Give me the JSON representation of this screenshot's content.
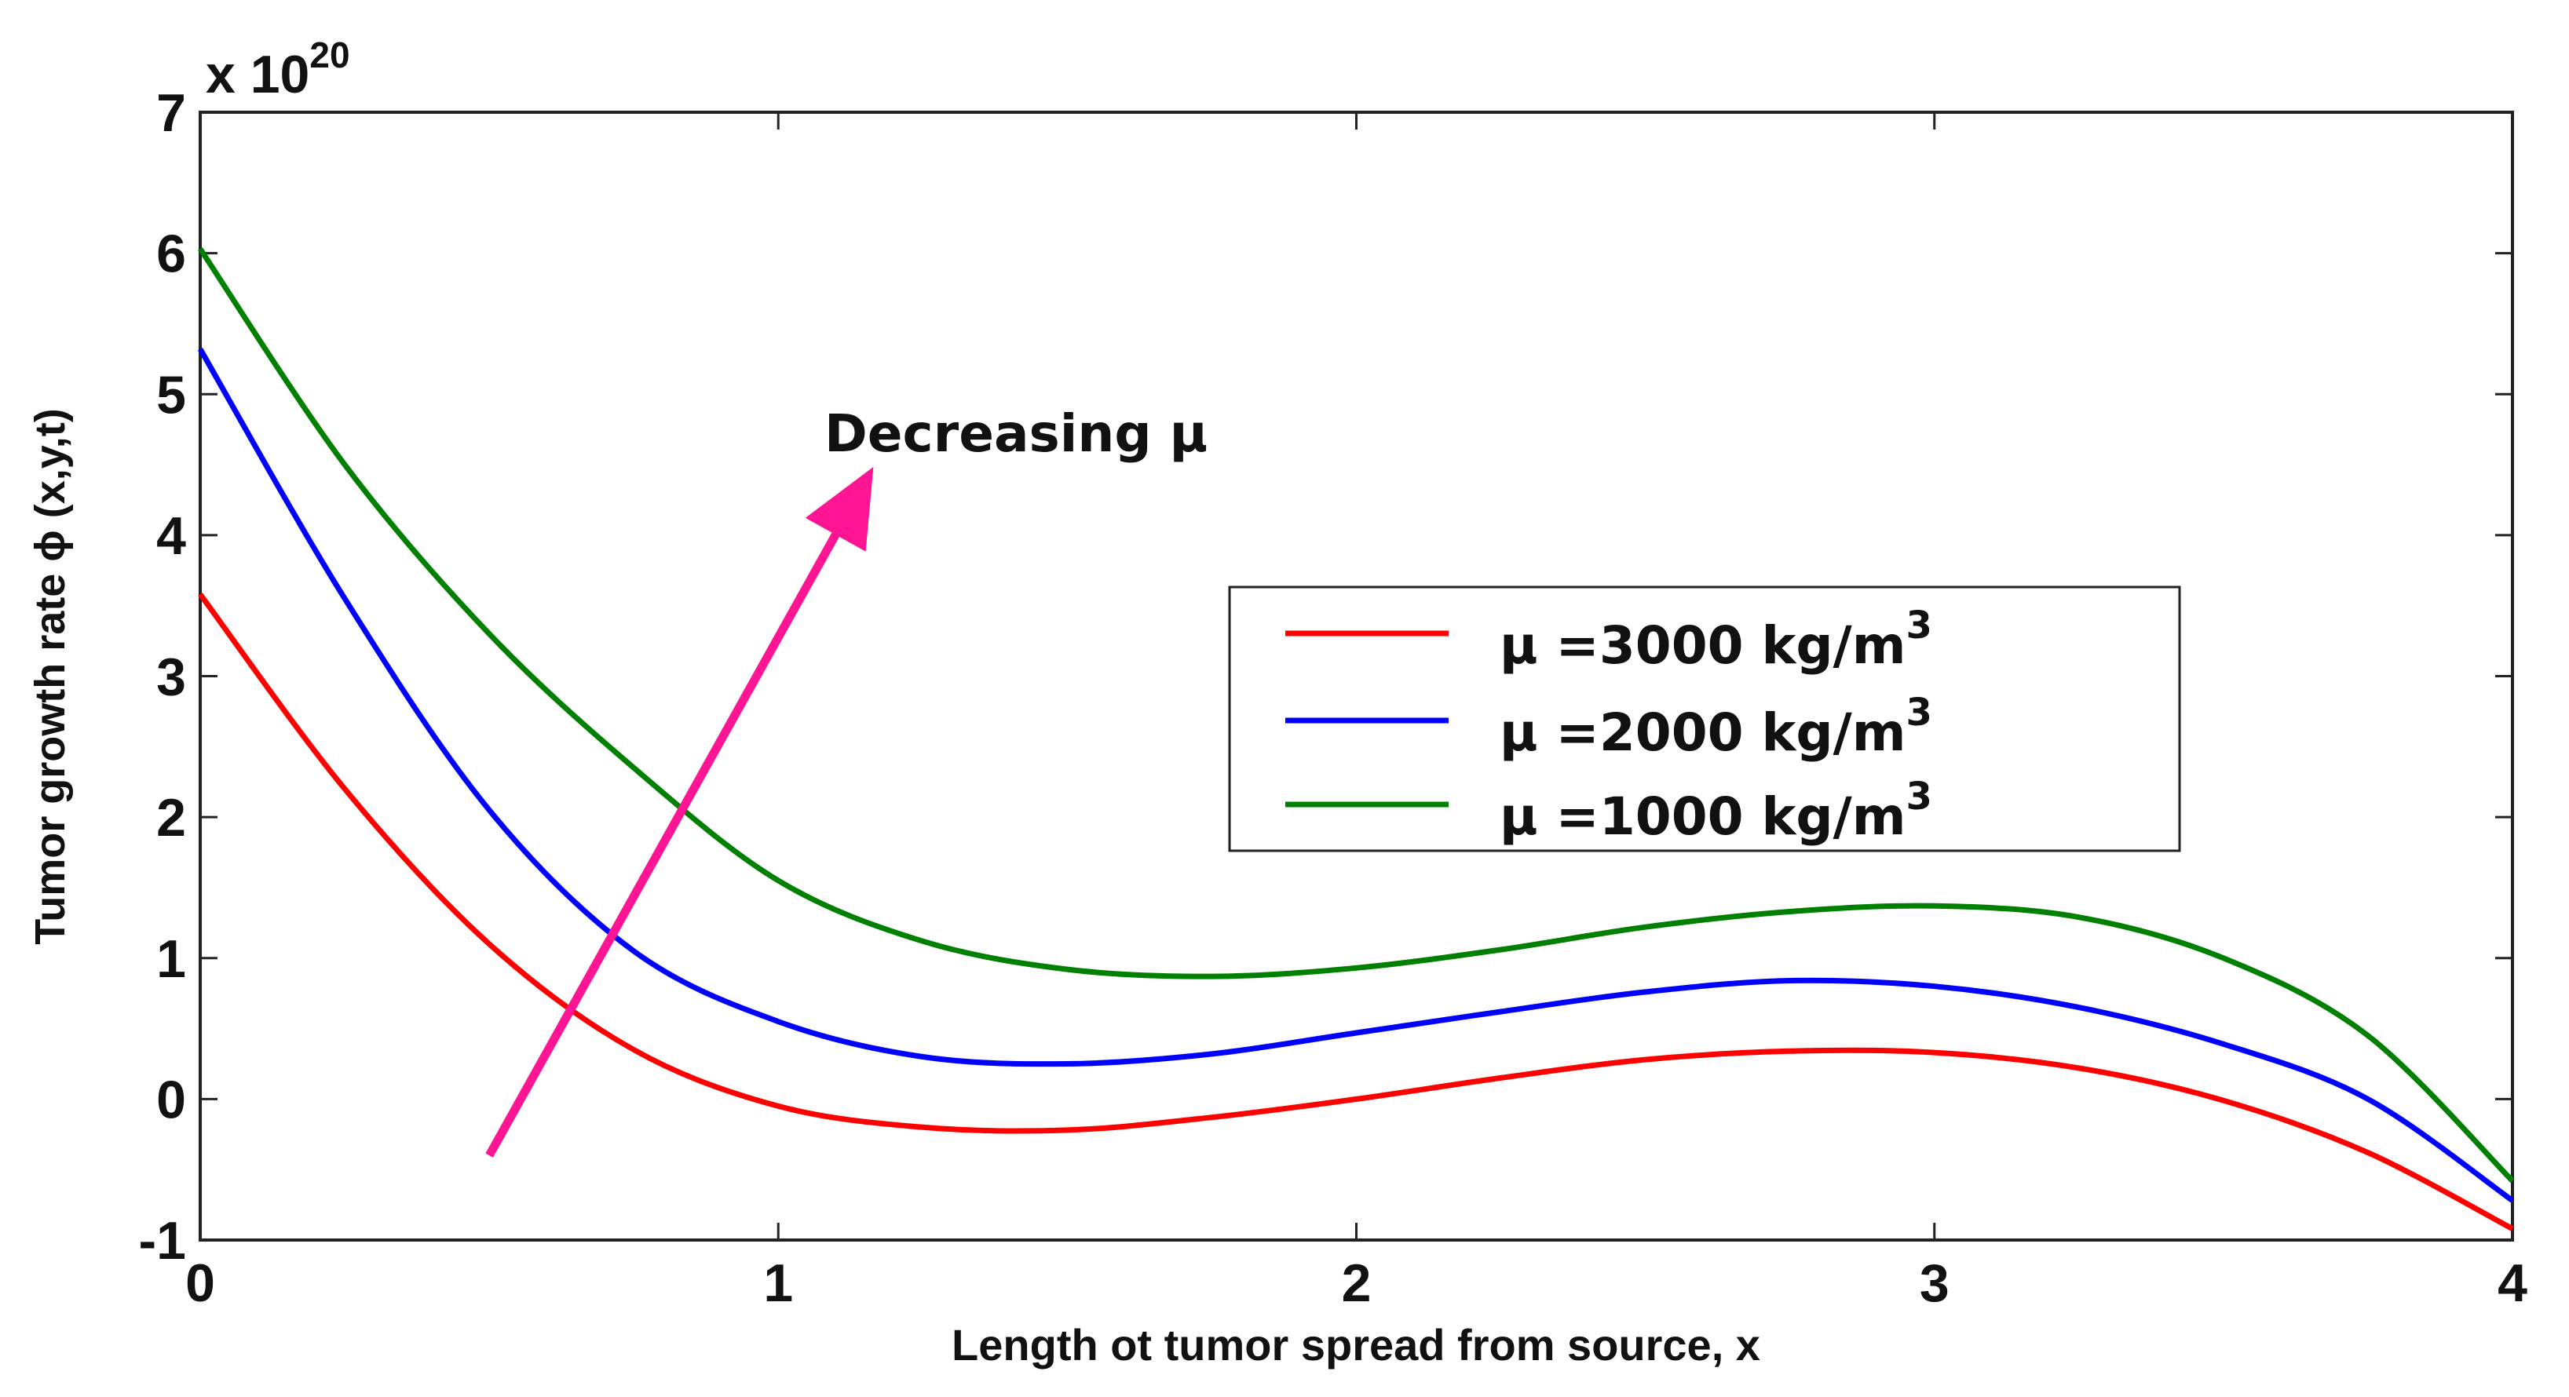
{
  "chart_data": {
    "type": "line",
    "title": "",
    "xlabel": "Length ot tumor spread from source, x",
    "ylabel": "Tumor growth rate ϕ (x,y,t)",
    "xlim": [
      0,
      4
    ],
    "ylim": [
      -1,
      7
    ],
    "xticks": [
      "0",
      "1",
      "2",
      "3",
      "4"
    ],
    "yticks": [
      "-1",
      "0",
      "1",
      "2",
      "3",
      "4",
      "5",
      "6",
      "7"
    ],
    "y_exponent_prefix": "x 10",
    "y_exponent": "20",
    "grid": false,
    "legend_position": "center-right",
    "series": [
      {
        "name": "μ =3000  kg/m3",
        "label_main": "μ =3000  kg/m",
        "label_sup": "3",
        "color": "#ff0000",
        "x": [
          0,
          0.25,
          0.5,
          0.75,
          1.0,
          1.25,
          1.5,
          1.75,
          2.0,
          2.25,
          2.5,
          2.75,
          3.0,
          3.25,
          3.5,
          3.75,
          4.0
        ],
        "y": [
          3.58,
          2.2,
          1.1,
          0.35,
          -0.05,
          -0.2,
          -0.22,
          -0.13,
          0.0,
          0.15,
          0.28,
          0.34,
          0.33,
          0.22,
          -0.01,
          -0.38,
          -0.92
        ]
      },
      {
        "name": "μ =2000  kg/m3",
        "label_main": "μ =2000  kg/m",
        "label_sup": "3",
        "color": "#0000ff",
        "x": [
          0,
          0.25,
          0.5,
          0.75,
          1.0,
          1.25,
          1.5,
          1.75,
          2.0,
          2.25,
          2.5,
          2.75,
          3.0,
          3.25,
          3.5,
          3.75,
          4.0
        ],
        "y": [
          5.32,
          3.55,
          2.05,
          1.05,
          0.55,
          0.3,
          0.25,
          0.32,
          0.47,
          0.62,
          0.76,
          0.84,
          0.8,
          0.65,
          0.39,
          0.0,
          -0.72
        ]
      },
      {
        "name": "μ =1000  kg/m3",
        "label_main": "μ =1000  kg/m",
        "label_sup": "3",
        "color": "#008000",
        "x": [
          0,
          0.25,
          0.5,
          0.75,
          1.0,
          1.25,
          1.5,
          1.75,
          2.0,
          2.25,
          2.5,
          2.75,
          3.0,
          3.25,
          3.5,
          3.75,
          4.0
        ],
        "y": [
          6.03,
          4.5,
          3.3,
          2.35,
          1.55,
          1.12,
          0.92,
          0.87,
          0.93,
          1.06,
          1.22,
          1.33,
          1.37,
          1.29,
          1.0,
          0.45,
          -0.58
        ]
      }
    ],
    "annotations": [
      {
        "text": "Decreasing   μ",
        "arrow_color": "#ff1493",
        "arrow_from": [
          0.5,
          -0.4
        ],
        "arrow_to": [
          1.15,
          4.6
        ]
      }
    ]
  }
}
